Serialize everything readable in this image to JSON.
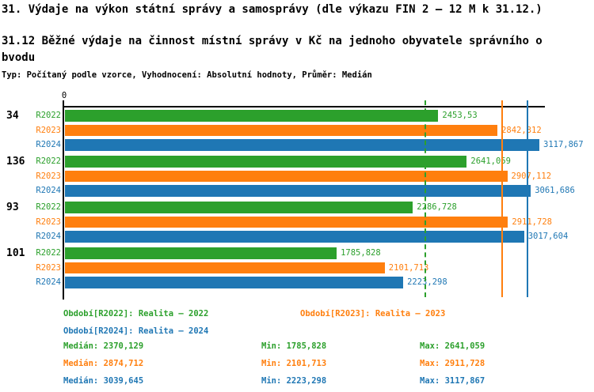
{
  "header": {
    "title_line1": "31. Výdaje na výkon státní správy a samosprávy (dle výkazu FIN 2 – 12 M k 31.12.)",
    "title_line2": "31.12 Běžné výdaje na činnost místní správy v Kč na jednoho obyvatele správního o",
    "title_line3": "bvodu",
    "meta": "Typ: Počítaný podle vzorce, Vyhodnocení: Absolutní hodnoty, Průměr: Medián"
  },
  "colors": {
    "R2022": "#2ca02c",
    "R2023": "#ff7f0e",
    "R2024": "#1f77b4",
    "axis": "#000000"
  },
  "chart_data": {
    "type": "bar",
    "orientation": "horizontal",
    "title": "31.12 Běžné výdaje na činnost místní správy v Kč na jednoho obyvatele správního obvodu",
    "axis": {
      "zero_label": "0",
      "min": 0,
      "max": 3117.867
    },
    "grid": "median-lines-per-series",
    "legend_position": "bottom",
    "series": [
      "R2022",
      "R2023",
      "R2024"
    ],
    "groups": [
      {
        "label": "34",
        "values": [
          2453.53,
          2842.312,
          3117.867
        ],
        "value_labels": [
          "2453,53",
          "2842,312",
          "3117,867"
        ]
      },
      {
        "label": "136",
        "values": [
          2641.059,
          2907.112,
          3061.686
        ],
        "value_labels": [
          "2641,059",
          "2907,112",
          "3061,686"
        ]
      },
      {
        "label": "93",
        "values": [
          2286.728,
          2911.728,
          3017.604
        ],
        "value_labels": [
          "2286,728",
          "2911,728",
          "3017,604"
        ]
      },
      {
        "label": "101",
        "values": [
          1785.828,
          2101.713,
          2223.298
        ],
        "value_labels": [
          "1785,828",
          "2101,713",
          "2223,298"
        ]
      }
    ],
    "median_lines": [
      {
        "series": "R2022",
        "value": 2370.129,
        "style": "dashed"
      },
      {
        "series": "R2023",
        "value": 2874.712,
        "style": "solid"
      },
      {
        "series": "R2024",
        "value": 3039.645,
        "style": "solid"
      }
    ]
  },
  "legend": {
    "r2022": "Období[R2022]: Realita – 2022",
    "r2023": "Období[R2023]: Realita – 2023",
    "r2024": "Období[R2024]: Realita – 2024"
  },
  "stats": {
    "rows": [
      {
        "series": "R2022",
        "median": "Medián: 2370,129",
        "min": "Min: 1785,828",
        "max": "Max: 2641,059"
      },
      {
        "series": "R2023",
        "median": "Medián: 2874,712",
        "min": "Min: 2101,713",
        "max": "Max: 2911,728"
      },
      {
        "series": "R2024",
        "median": "Medián: 3039,645",
        "min": "Min: 2223,298",
        "max": "Max: 3117,867"
      }
    ]
  }
}
